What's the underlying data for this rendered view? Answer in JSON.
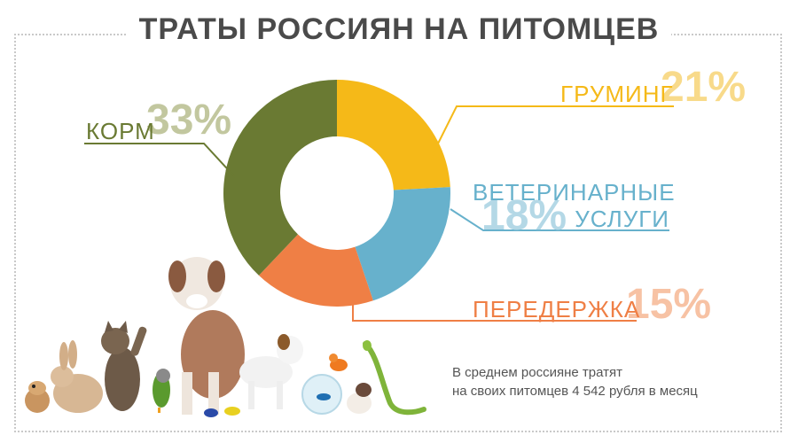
{
  "header": {
    "title": "ТРАТЫ РОССИЯН НА ПИТОМЦЕВ"
  },
  "chart_data": {
    "type": "pie",
    "title": "ТРАТЫ РОССИЯН НА ПИТОМЦЕВ",
    "slices": [
      {
        "label": "ГРУМИНГ",
        "value": 21,
        "value_label": "21%",
        "color": "#f5b918",
        "pct_color": "#f8da8a"
      },
      {
        "label": "ВЕТЕРИНАРНЫЕ УСЛУГИ",
        "label_lines": [
          "ВЕТЕРИНАРНЫЕ",
          "УСЛУГИ"
        ],
        "value": 18,
        "value_label": "18%",
        "color": "#67b1cc",
        "pct_color": "#b4d8e6"
      },
      {
        "label": "ПЕРЕДЕРЖКА",
        "value": 15,
        "value_label": "15%",
        "color": "#ef7f45",
        "pct_color": "#f7c2a4"
      },
      {
        "label": "КОРМ",
        "value": 33,
        "value_label": "33%",
        "color": "#6a7a33",
        "pct_color": "#c2c79f"
      }
    ]
  },
  "footnote": {
    "line1": "В среднем россияне тратят",
    "line2": "на своих питомцев 4 542 рубля в месяц"
  },
  "colors": {
    "title": "#4a4a4a",
    "frame": "#c9c9c9"
  }
}
